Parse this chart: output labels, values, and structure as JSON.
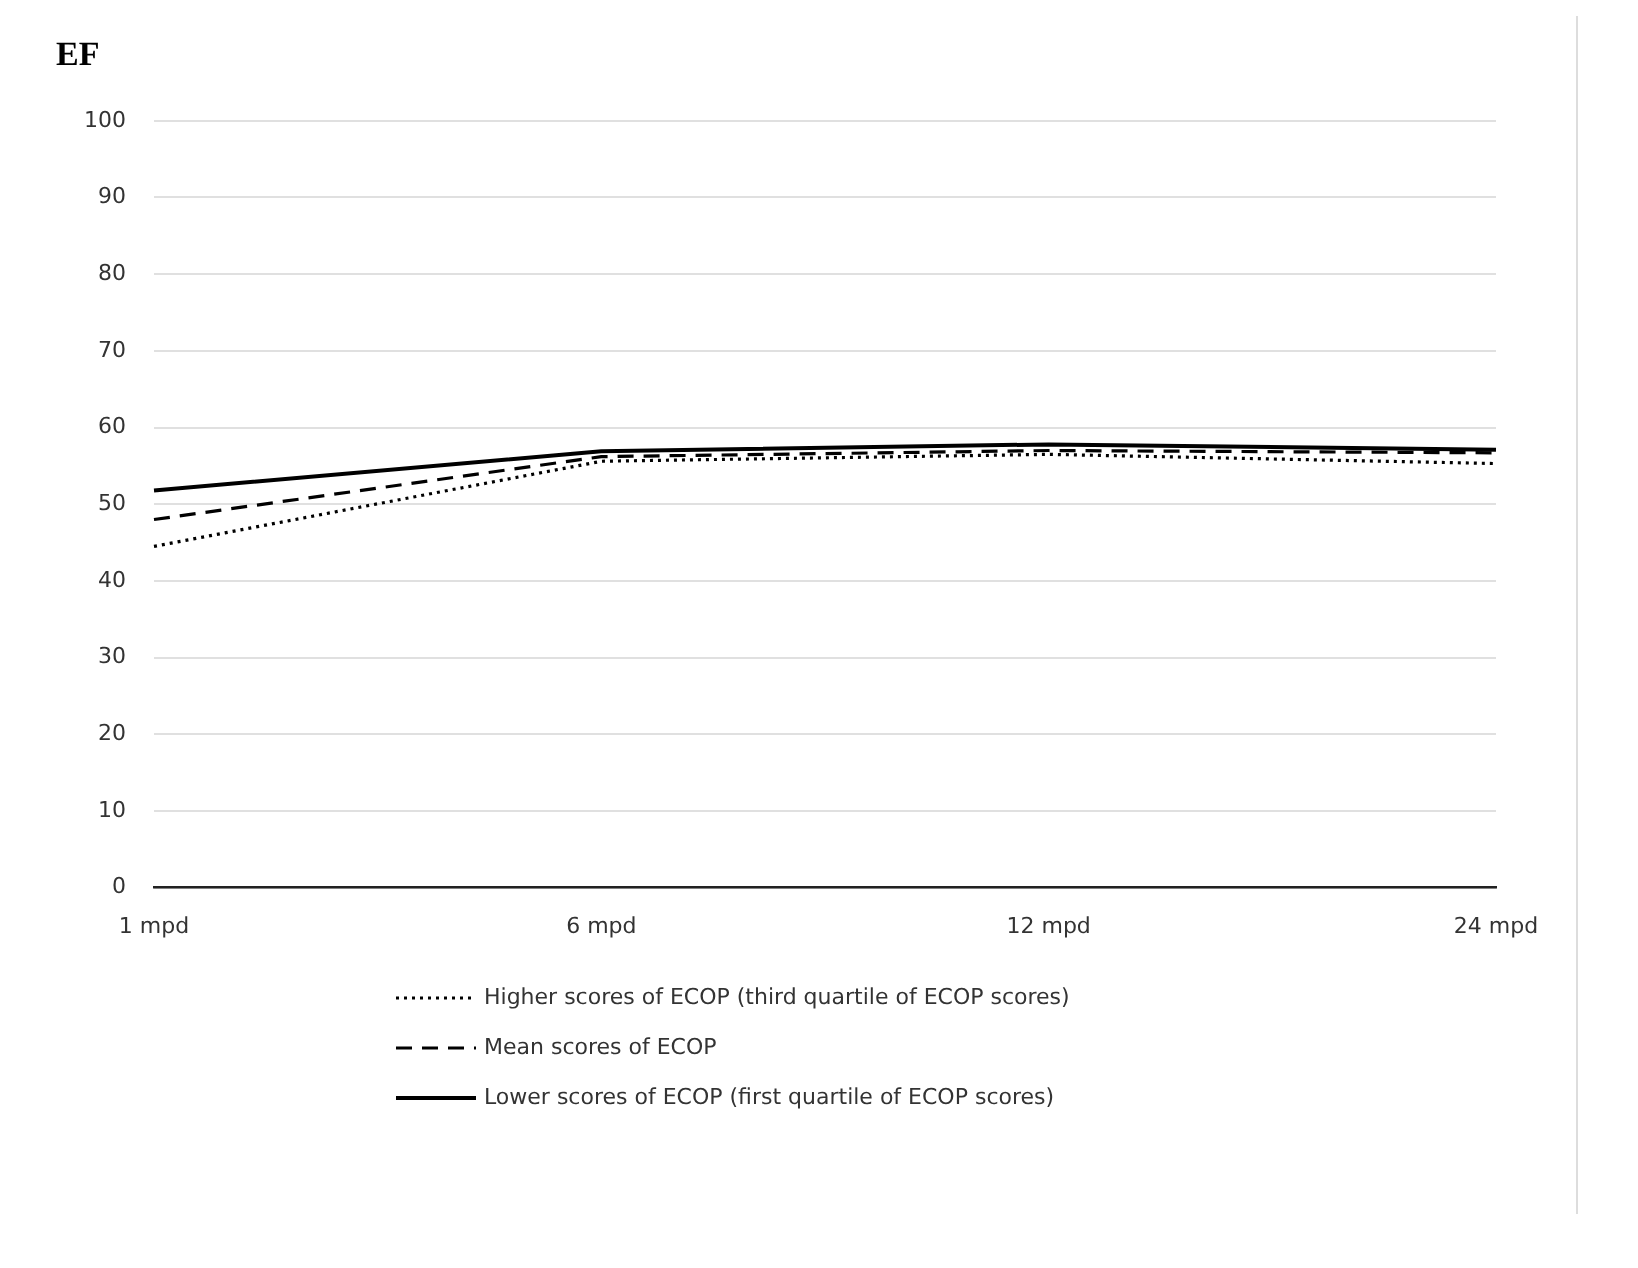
{
  "chart_data": {
    "type": "line",
    "title": "EF",
    "categories": [
      "1 mpd",
      "6 mpd",
      "12 mpd",
      "24 mpd"
    ],
    "series": [
      {
        "name": "Higher scores of ECOP (third quartile of ECOP scores)",
        "color": "#000000",
        "line_style": "dotted",
        "values": [
          44.5,
          55.6,
          56.5,
          55.3
        ]
      },
      {
        "name": "Mean scores of ECOP",
        "color": "#000000",
        "line_style": "dashed",
        "values": [
          48,
          56.2,
          57,
          56.7
        ]
      },
      {
        "name": "Lower scores of ECOP (first quartile of ECOP scores)",
        "color": "#000000",
        "line_style": "solid",
        "values": [
          51.8,
          56.9,
          57.8,
          57.1
        ]
      }
    ],
    "ylim": [
      0,
      100
    ],
    "yticks": [
      0,
      10,
      20,
      30,
      40,
      50,
      60,
      70,
      80,
      90,
      100
    ],
    "grid": "y",
    "legend": "bottom",
    "marker": "none"
  }
}
